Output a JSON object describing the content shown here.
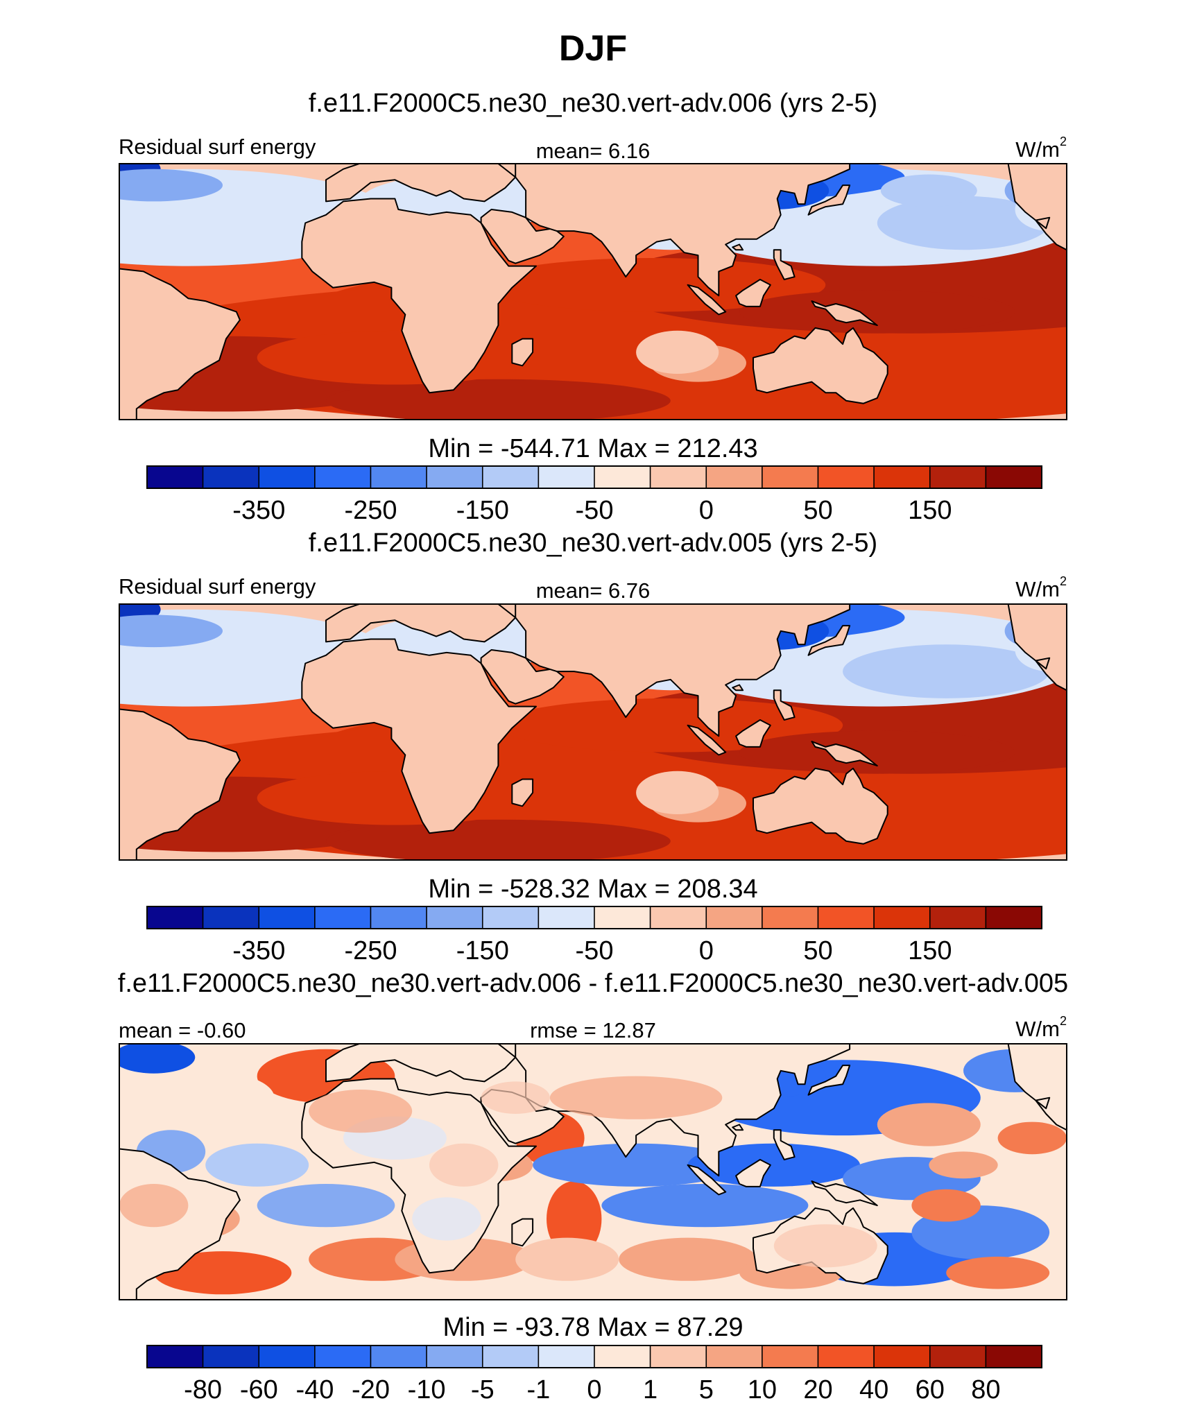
{
  "figure_title": "DJF",
  "colors": {
    "palette": [
      "#08068f",
      "#0a33bd",
      "#0f50e3",
      "#2b6bf5",
      "#5287f2",
      "#85aaf2",
      "#b3cbf7",
      "#dbe7fa",
      "#fde8d9",
      "#fac8b0",
      "#f5a583",
      "#f47b4f",
      "#f25426",
      "#db3409",
      "#b3210c",
      "#8a0804"
    ],
    "land": "#fac8b0",
    "coast": "#000000"
  },
  "panels": [
    {
      "id": "panel-1",
      "title": "f.e11.F2000C5.ne30_ne30.vert-adv.006 (yrs 2-5)",
      "left_label": "Residual surf energy",
      "center_label": "mean=   6.16",
      "units_base": "W/m",
      "units_exp": "2",
      "min_max": "Min = -544.71 Max = 212.43",
      "tick_labels": [
        "-350",
        "-250",
        "-150",
        "-50",
        "0",
        "50",
        "150"
      ]
    },
    {
      "id": "panel-2",
      "title": "f.e11.F2000C5.ne30_ne30.vert-adv.005 (yrs 2-5)",
      "left_label": "Residual surf energy",
      "center_label": "mean=   6.76",
      "units_base": "W/m",
      "units_exp": "2",
      "min_max": "Min = -528.32 Max = 208.34",
      "tick_labels": [
        "-350",
        "-250",
        "-150",
        "-50",
        "0",
        "50",
        "150"
      ]
    },
    {
      "id": "panel-3",
      "title": "f.e11.F2000C5.ne30_ne30.vert-adv.006 - f.e11.F2000C5.ne30_ne30.vert-adv.005",
      "left_label": "mean =  -0.60",
      "center_label": "rmse =  12.87",
      "units_base": "W/m",
      "units_exp": "2",
      "min_max": "Min = -93.78 Max =  87.29",
      "tick_labels": [
        "-80",
        "-60",
        "-40",
        "-20",
        "-10",
        "-5",
        "-1",
        "0",
        "1",
        "5",
        "10",
        "20",
        "40",
        "60",
        "80"
      ]
    }
  ],
  "chart_data": [
    {
      "type": "heatmap",
      "title": "f.e11.F2000C5.ne30_ne30.vert-adv.006 (yrs 2-5)",
      "variable": "Residual surf energy",
      "units": "W/m2",
      "mean": 6.16,
      "min": -544.71,
      "max": 212.43,
      "colorbar_levels": [
        -350,
        -300,
        -250,
        -200,
        -150,
        -100,
        -50,
        -25,
        0,
        25,
        50,
        100,
        150,
        200,
        250
      ],
      "colorbar_tick_labels": [
        "-350",
        "-250",
        "-150",
        "-50",
        "0",
        "50",
        "150"
      ]
    },
    {
      "type": "heatmap",
      "title": "f.e11.F2000C5.ne30_ne30.vert-adv.005 (yrs 2-5)",
      "variable": "Residual surf energy",
      "units": "W/m2",
      "mean": 6.76,
      "min": -528.32,
      "max": 208.34,
      "colorbar_levels": [
        -350,
        -300,
        -250,
        -200,
        -150,
        -100,
        -50,
        -25,
        0,
        25,
        50,
        100,
        150,
        200,
        250
      ],
      "colorbar_tick_labels": [
        "-350",
        "-250",
        "-150",
        "-50",
        "0",
        "50",
        "150"
      ]
    },
    {
      "type": "heatmap",
      "title": "f.e11.F2000C5.ne30_ne30.vert-adv.006 - f.e11.F2000C5.ne30_ne30.vert-adv.005",
      "units": "W/m2",
      "mean": -0.6,
      "rmse": 12.87,
      "min": -93.78,
      "max": 87.29,
      "colorbar_levels": [
        -80,
        -60,
        -40,
        -20,
        -10,
        -5,
        -1,
        0,
        1,
        5,
        10,
        20,
        40,
        60,
        80
      ],
      "colorbar_tick_labels": [
        "-80",
        "-60",
        "-40",
        "-20",
        "-10",
        "-5",
        "-1",
        "0",
        "1",
        "5",
        "10",
        "20",
        "40",
        "60",
        "80"
      ]
    }
  ]
}
